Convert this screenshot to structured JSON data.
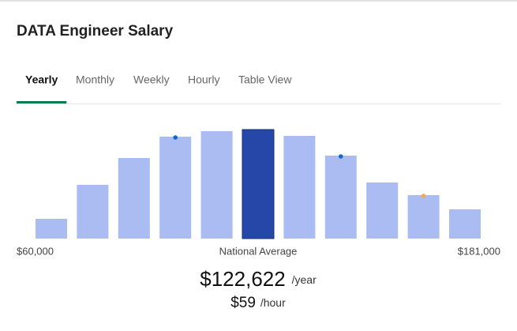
{
  "header": {
    "title": "DATA Engineer Salary"
  },
  "tabs": [
    "Yearly",
    "Monthly",
    "Weekly",
    "Hourly",
    "Table View"
  ],
  "active_tab": 0,
  "chart": {
    "type": "bar",
    "values": [
      25,
      68,
      102,
      129,
      136,
      138,
      130,
      105,
      71,
      55,
      37
    ],
    "color": "#aabcf1",
    "highlight": 5,
    "highlight_color": "#2547a7",
    "markers": [
      {
        "bar": 3,
        "color": "#1565d8"
      },
      {
        "bar": 7,
        "color": "#1565d8"
      },
      {
        "bar": 9,
        "color": "#f0a868"
      }
    ]
  },
  "range": {
    "min": "$60,000",
    "label": "National Average",
    "max": "$181,000"
  },
  "average": {
    "yearly": "$122,622",
    "yearly_unit": "/year",
    "hourly": "$59",
    "hourly_unit": "/hour"
  }
}
